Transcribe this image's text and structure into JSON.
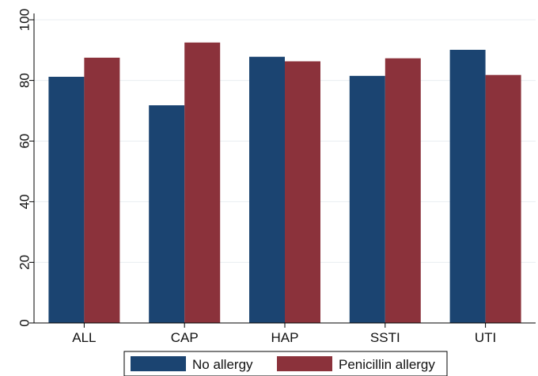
{
  "chart_data": {
    "type": "bar",
    "categories": [
      "ALL",
      "CAP",
      "HAP",
      "SSTI",
      "UTI"
    ],
    "series": [
      {
        "name": "No allergy",
        "color": "#1b4471",
        "values": [
          81.2,
          71.8,
          87.8,
          81.5,
          90.1
        ]
      },
      {
        "name": "Penicillin allergy",
        "color": "#8b323b",
        "values": [
          87.5,
          92.5,
          86.3,
          87.3,
          81.8
        ]
      }
    ],
    "ylim": [
      0,
      100
    ],
    "yticks": [
      0,
      20,
      40,
      60,
      80,
      100
    ],
    "grid": true,
    "legend_position": "bottom",
    "title": "",
    "xlabel": "",
    "ylabel": ""
  }
}
